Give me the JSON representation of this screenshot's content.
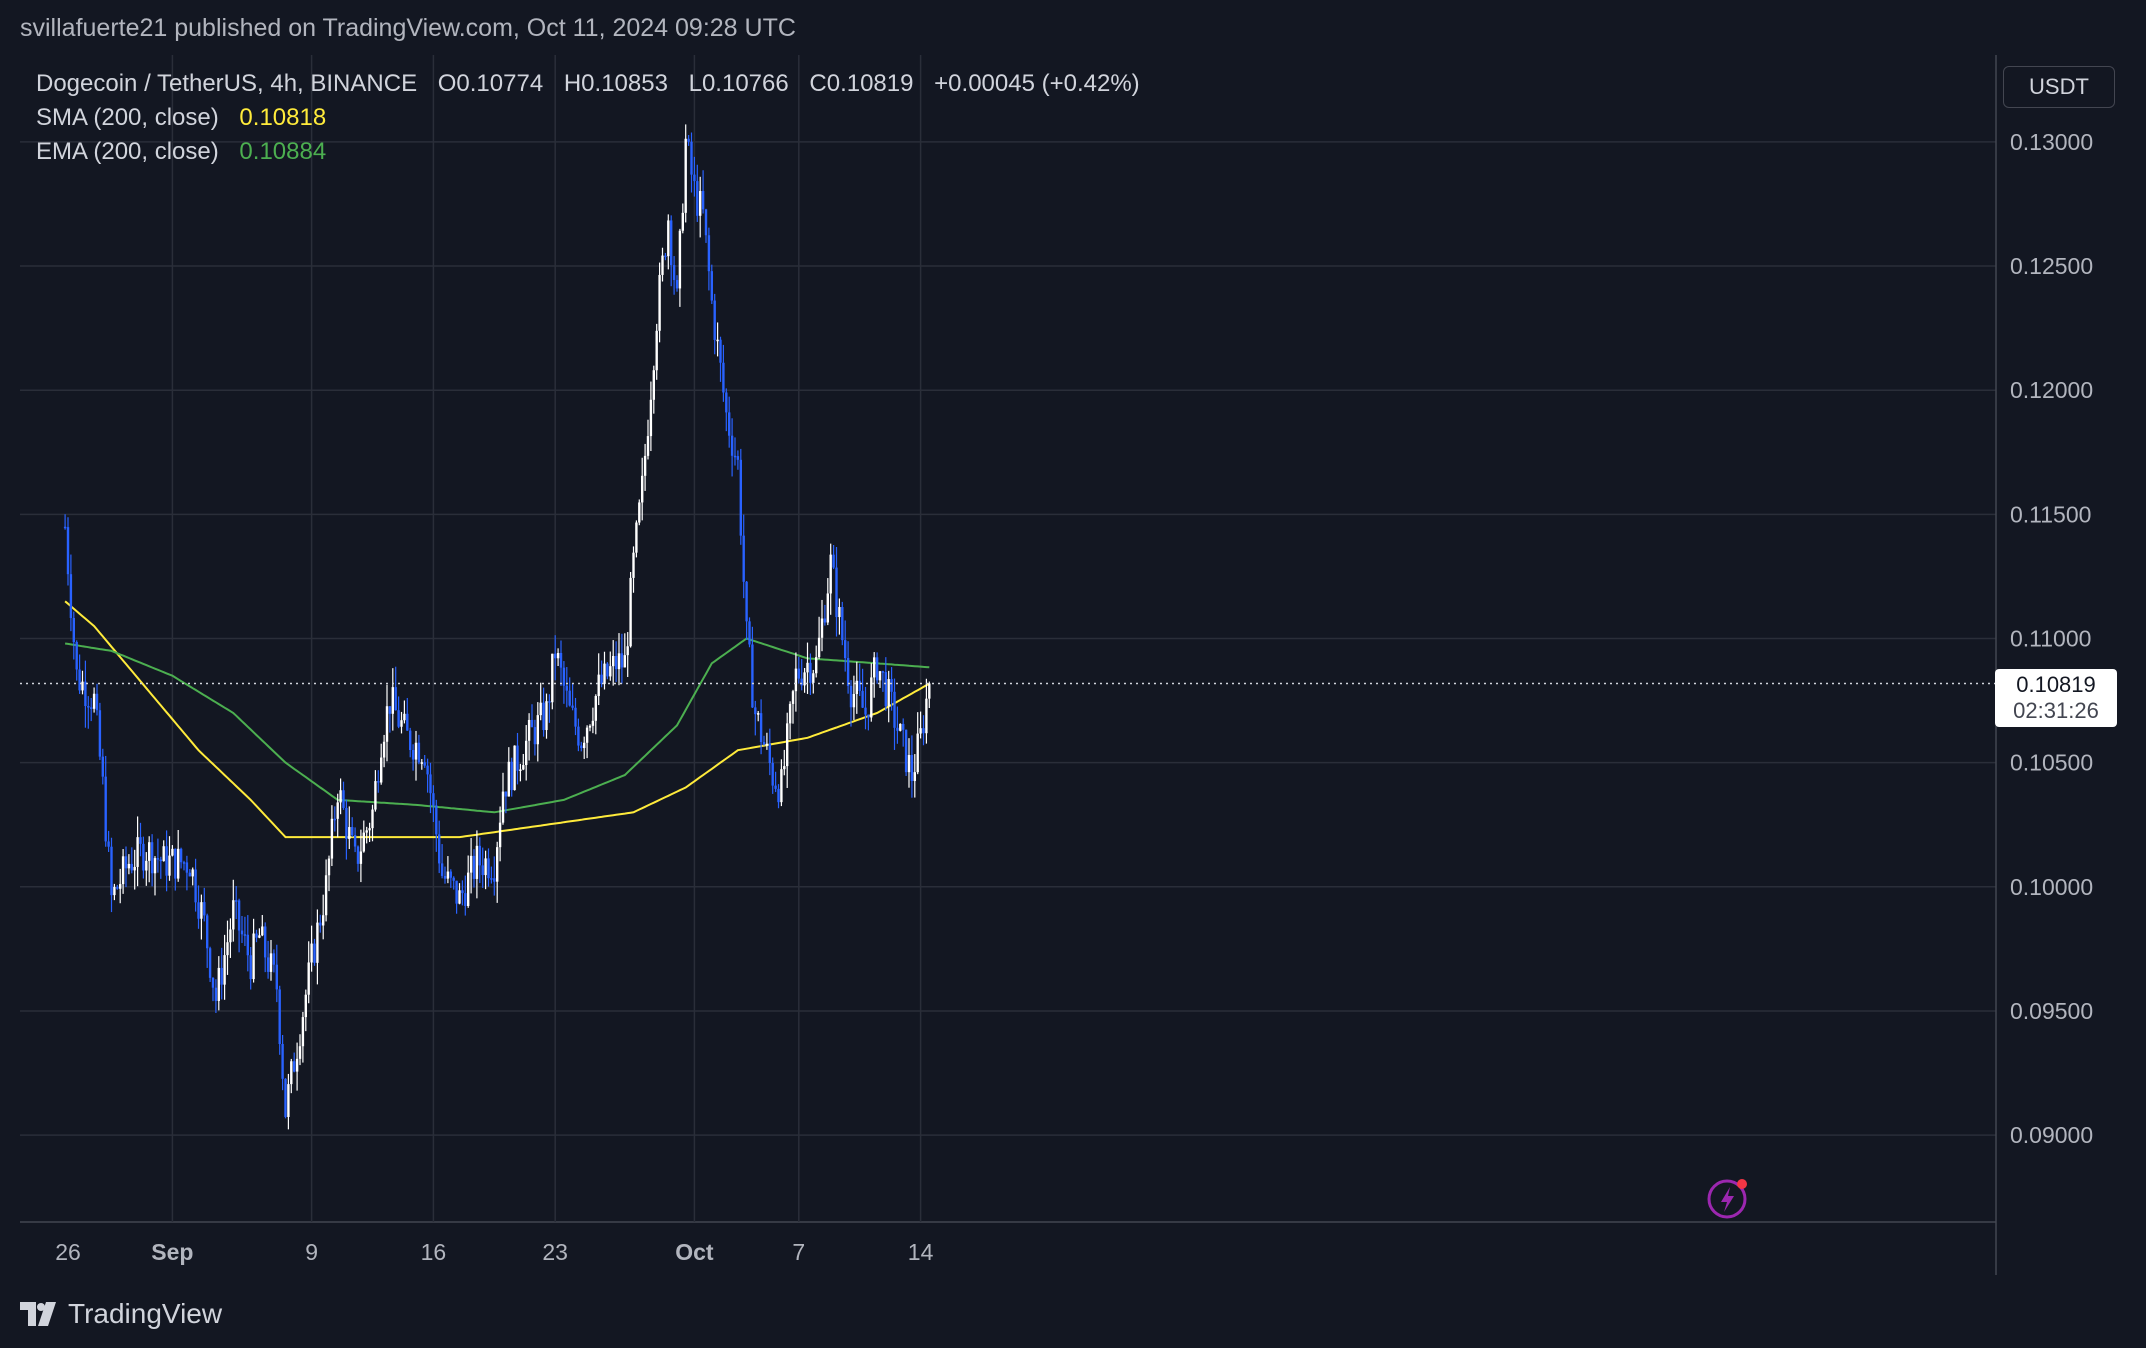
{
  "header": {
    "published": "svillafuerte21 published on TradingView.com, Oct 11, 2024 09:28 UTC"
  },
  "legend": {
    "symbol": "Dogecoin / TetherUS, 4h, BINANCE",
    "open": "O0.10774",
    "high": "H0.10853",
    "low": "L0.10766",
    "close": "C0.10819",
    "change": "+0.00045 (+0.42%)",
    "sma_label": "SMA (200, close)",
    "sma_value": "0.10818",
    "ema_label": "EMA (200, close)",
    "ema_value": "0.10884"
  },
  "price_scale": {
    "currency": "USDT",
    "last_price": "0.10819",
    "countdown": "02:31:26"
  },
  "footer": {
    "brand": "TradingView"
  },
  "colors": {
    "background": "#131722",
    "grid": "#2a2e39",
    "up": "#ffffff",
    "down": "#2962ff",
    "sma": "#ffeb3b",
    "ema": "#4caf50",
    "text": "#d1d4dc"
  },
  "chart_data": {
    "type": "candlestick",
    "title": "Dogecoin / TetherUS, 4h, BINANCE",
    "ylim": [
      0.0865,
      0.1335
    ],
    "y_ticks": [
      "0.13000",
      "0.12500",
      "0.12000",
      "0.11500",
      "0.11000",
      "0.10500",
      "0.10000",
      "0.09500",
      "0.09000"
    ],
    "x_ticks": [
      "26",
      "Sep",
      "9",
      "16",
      "23",
      "Oct",
      "7",
      "14"
    ],
    "last_price": 0.10819,
    "grid": true,
    "candle_anchors": [
      [
        "Aug 25 20:00",
        0.1145
      ],
      [
        "Aug 26 12:00",
        0.1085
      ],
      [
        "Aug 27 12:00",
        0.1075
      ],
      [
        "Aug 28 00:00",
        0.104
      ],
      [
        "Aug 28 12:00",
        0.0995
      ],
      [
        "Aug 29 12:00",
        0.101
      ],
      [
        "Aug 30 12:00",
        0.1015
      ],
      [
        "Aug 31 12:00",
        0.101
      ],
      [
        "Sep 2 00:00",
        0.101
      ],
      [
        "Sep 2 20:00",
        0.0985
      ],
      [
        "Sep 3 12:00",
        0.0955
      ],
      [
        "Sep 4 12:00",
        0.099
      ],
      [
        "Sep 5 12:00",
        0.097
      ],
      [
        "Sep 6 00:00",
        0.098
      ],
      [
        "Sep 7 00:00",
        0.096
      ],
      [
        "Sep 7 12:00",
        0.091
      ],
      [
        "Sep 8 12:00",
        0.095
      ],
      [
        "Sep 9 00:00",
        0.097
      ],
      [
        "Sep 9 20:00",
        0.1
      ],
      [
        "Sep 10 12:00",
        0.104
      ],
      [
        "Sep 11 12:00",
        0.101
      ],
      [
        "Sep 12 12:00",
        0.103
      ],
      [
        "Sep 13 00:00",
        0.106
      ],
      [
        "Sep 13 12:00",
        0.1075
      ],
      [
        "Sep 14 12:00",
        0.106
      ],
      [
        "Sep 15 12:00",
        0.1055
      ],
      [
        "Sep 16 12:00",
        0.1005
      ],
      [
        "Sep 17 12:00",
        0.0995
      ],
      [
        "Sep 18 12:00",
        0.101
      ],
      [
        "Sep 19 12:00",
        0.101
      ],
      [
        "Sep 20 00:00",
        0.104
      ],
      [
        "Sep 21 12:00",
        0.106
      ],
      [
        "Sep 22 12:00",
        0.107
      ],
      [
        "Sep 23 00:00",
        0.1095
      ],
      [
        "Sep 23 20:00",
        0.107
      ],
      [
        "Sep 24 12:00",
        0.106
      ],
      [
        "Sep 25 12:00",
        0.108
      ],
      [
        "Sep 26 12:00",
        0.109
      ],
      [
        "Sep 27 00:00",
        0.109
      ],
      [
        "Sep 27 12:00",
        0.113
      ],
      [
        "Sep 28 00:00",
        0.116
      ],
      [
        "Sep 28 20:00",
        0.123
      ],
      [
        "Sep 29 12:00",
        0.127
      ],
      [
        "Sep 30 00:00",
        0.1235
      ],
      [
        "Sep 30 12:00",
        0.13
      ],
      [
        "Oct 1 00:00",
        0.128
      ],
      [
        "Oct 1 12:00",
        0.127
      ],
      [
        "Oct 2 00:00",
        0.1235
      ],
      [
        "Oct 2 20:00",
        0.119
      ],
      [
        "Oct 3 12:00",
        0.117
      ],
      [
        "Oct 4 00:00",
        0.11
      ],
      [
        "Oct 4 12:00",
        0.107
      ],
      [
        "Oct 5 12:00",
        0.1045
      ],
      [
        "Oct 6 00:00",
        0.104
      ],
      [
        "Oct 6 20:00",
        0.1085
      ],
      [
        "Oct 7 12:00",
        0.109
      ],
      [
        "Oct 8 00:00",
        0.109
      ],
      [
        "Oct 8 20:00",
        0.113
      ],
      [
        "Oct 9 12:00",
        0.11
      ],
      [
        "Oct 10 00:00",
        0.108
      ],
      [
        "Oct 10 20:00",
        0.107
      ],
      [
        "Oct 11 12:00",
        0.109
      ],
      [
        "Oct 12 00:00",
        0.108
      ],
      [
        "Oct 12 20:00",
        0.106
      ],
      [
        "Oct 13 12:00",
        0.1045
      ],
      [
        "Oct 14 00:00",
        0.106
      ],
      [
        "Oct 14 08:00",
        0.1075
      ],
      [
        "Oct 14 12:00",
        0.1082
      ]
    ],
    "sma_anchors": [
      [
        "Aug 25 20:00",
        0.1115
      ],
      [
        "Aug 27 12:00",
        0.1105
      ],
      [
        "Aug 30 12:00",
        0.108
      ],
      [
        "Sep 2 12:00",
        0.1055
      ],
      [
        "Sep 5 12:00",
        0.1035
      ],
      [
        "Sep 7 12:00",
        0.102
      ],
      [
        "Sep 9 12:00",
        0.102
      ],
      [
        "Sep 13 00:00",
        0.102
      ],
      [
        "Sep 17 12:00",
        0.102
      ],
      [
        "Sep 20 12:00",
        0.1023
      ],
      [
        "Sep 24 12:00",
        0.1027
      ],
      [
        "Sep 27 12:00",
        0.103
      ],
      [
        "Sep 30 12:00",
        0.104
      ],
      [
        "Oct 3 12:00",
        0.1055
      ],
      [
        "Oct 7 12:00",
        0.106
      ],
      [
        "Oct 11 12:00",
        0.107
      ],
      [
        "Oct 14 12:00",
        0.10818
      ]
    ],
    "ema_anchors": [
      [
        "Aug 25 20:00",
        0.1098
      ],
      [
        "Aug 28 12:00",
        0.1095
      ],
      [
        "Sep 1 00:00",
        0.1085
      ],
      [
        "Sep 4 12:00",
        0.107
      ],
      [
        "Sep 7 12:00",
        0.105
      ],
      [
        "Sep 10 12:00",
        0.1035
      ],
      [
        "Sep 15 00:00",
        0.1033
      ],
      [
        "Sep 19 12:00",
        0.103
      ],
      [
        "Sep 23 12:00",
        0.1035
      ],
      [
        "Sep 27 00:00",
        0.1045
      ],
      [
        "Sep 30 00:00",
        0.1065
      ],
      [
        "Oct 2 00:00",
        0.109
      ],
      [
        "Oct 4 00:00",
        0.11
      ],
      [
        "Oct 7 12:00",
        0.1092
      ],
      [
        "Oct 11 12:00",
        0.109
      ],
      [
        "Oct 14 12:00",
        0.10884
      ]
    ]
  }
}
